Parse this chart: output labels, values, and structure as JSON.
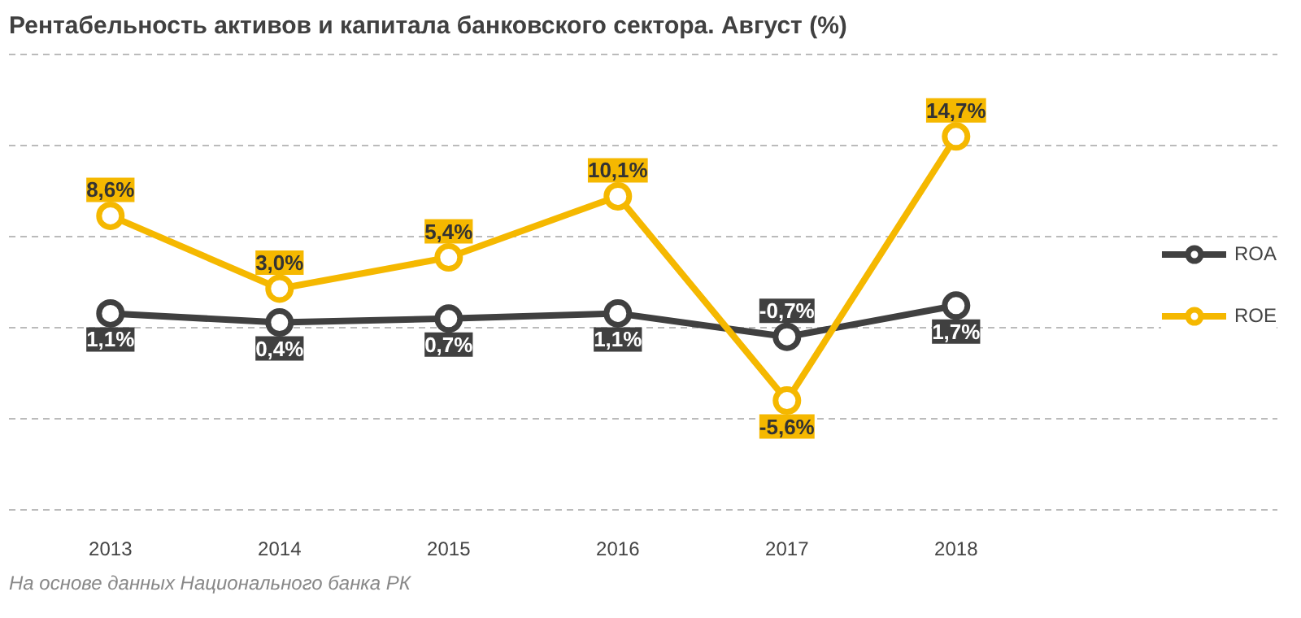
{
  "chart_data": {
    "type": "line",
    "title": "Рентабельность активов и капитала банковского сектора. Август (%)",
    "categories": [
      "2013",
      "2014",
      "2015",
      "2016",
      "2017",
      "2018"
    ],
    "series": [
      {
        "name": "ROA",
        "color": "#404040",
        "values": [
          1.1,
          0.4,
          0.7,
          1.1,
          -0.7,
          1.7
        ],
        "value_labels": [
          "1,1%",
          "0,4%",
          "0,7%",
          "1,1%",
          "-0,7%",
          "1,7%"
        ]
      },
      {
        "name": "ROE",
        "color": "#f5b800",
        "values": [
          8.6,
          3.0,
          5.4,
          10.1,
          -5.6,
          14.7
        ],
        "value_labels": [
          "8,6%",
          "3,0%",
          "5,4%",
          "10,1%",
          "-5,6%",
          "14,7%"
        ]
      }
    ],
    "yticks": [
      {
        "value": -14,
        "label": null
      },
      {
        "value": -7,
        "label": null
      },
      {
        "value": 0,
        "label": null
      },
      {
        "value": 7,
        "label": null
      },
      {
        "value": 14,
        "label": null
      },
      {
        "value": 21,
        "label": null
      }
    ],
    "grid": "y",
    "legend": "right",
    "marker": "circle",
    "line_style": "solid",
    "tick_labels": "x",
    "annotations": [
      "На основе данных Национального банка РК"
    ]
  }
}
